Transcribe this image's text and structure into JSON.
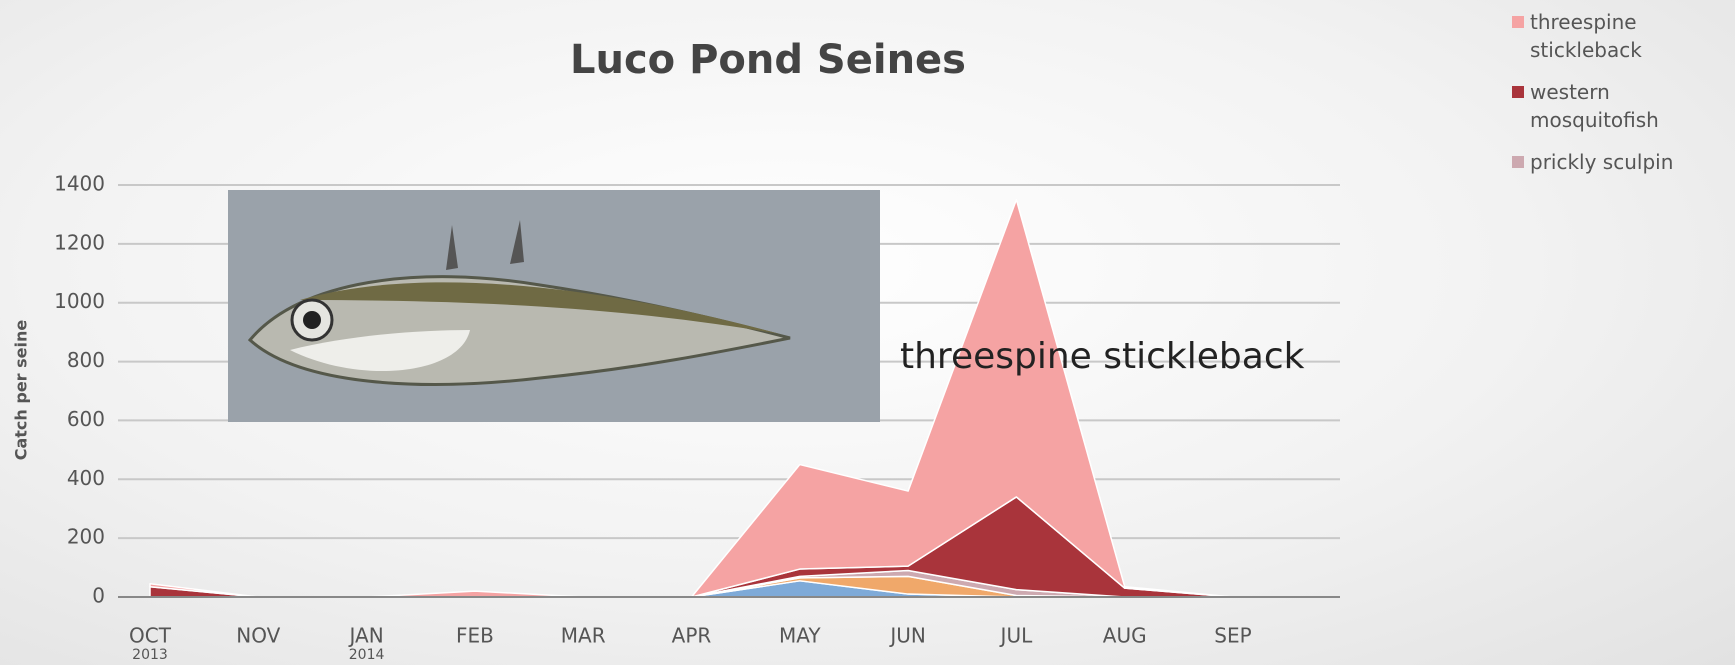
{
  "chart_data": {
    "type": "stacked_area",
    "title": "Luco Pond Seines",
    "y_label": "Catch per seine",
    "annotation": "threespine stickleback",
    "categories": [
      "OCT",
      "NOV",
      "JAN",
      "FEB",
      "MAR",
      "APR",
      "MAY",
      "JUN",
      "JUL",
      "AUG",
      "SEP"
    ],
    "category_years": [
      "2013",
      null,
      "2014",
      null,
      null,
      null,
      null,
      null,
      null,
      null,
      null
    ],
    "series": [
      {
        "color": "#7eaad8",
        "values": [
          0,
          0,
          0,
          0,
          0,
          0,
          55,
          10,
          0,
          0,
          0
        ]
      },
      {
        "color": "#f0a86a",
        "values": [
          0,
          0,
          0,
          0,
          0,
          0,
          10,
          60,
          5,
          0,
          0
        ]
      },
      {
        "name": "prickly sculpin",
        "color": "#cda9b0",
        "values": [
          0,
          0,
          0,
          0,
          0,
          0,
          5,
          20,
          20,
          0,
          0
        ]
      },
      {
        "name": "western mosquitofish",
        "color": "#a9343b",
        "values": [
          35,
          0,
          0,
          0,
          0,
          0,
          25,
          15,
          315,
          30,
          0
        ]
      },
      {
        "name": "threespine stickleback",
        "color": "#f5a3a3",
        "values": [
          10,
          0,
          0,
          20,
          0,
          0,
          355,
          255,
          1010,
          5,
          0
        ]
      }
    ],
    "ylim": [
      0,
      1400
    ],
    "yticks": [
      0,
      200,
      400,
      600,
      800,
      1000,
      1200,
      1400
    ],
    "grid": true
  }
}
